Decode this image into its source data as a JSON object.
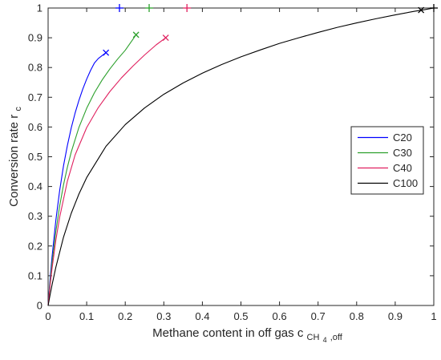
{
  "chart_data": {
    "type": "line",
    "title": "",
    "xlabel": {
      "text": "Methane content in off gas c",
      "sub": "CH",
      "subsub": "4",
      "sub2": ",off"
    },
    "ylabel": {
      "text": "Conversion rate r",
      "sub": "c"
    },
    "xlim": [
      0,
      1
    ],
    "ylim": [
      0,
      1
    ],
    "xticks": [
      "0",
      "0.1",
      "0.2",
      "0.3",
      "0.4",
      "0.5",
      "0.6",
      "0.7",
      "0.8",
      "0.9",
      "1"
    ],
    "yticks": [
      "0",
      "0.1",
      "0.2",
      "0.3",
      "0.4",
      "0.5",
      "0.6",
      "0.7",
      "0.8",
      "0.9",
      "1"
    ],
    "grid": false,
    "legend_position": "right",
    "series": [
      {
        "name": "C20",
        "color": "#0000ff",
        "x": [
          0,
          0.005,
          0.01,
          0.02,
          0.03,
          0.04,
          0.05,
          0.06,
          0.07,
          0.08,
          0.09,
          0.1,
          0.11,
          0.12,
          0.13,
          0.14,
          0.15
        ],
        "y": [
          0,
          0.087,
          0.161,
          0.286,
          0.387,
          0.47,
          0.538,
          0.597,
          0.647,
          0.69,
          0.728,
          0.761,
          0.79,
          0.815,
          0.83,
          0.84,
          0.85
        ],
        "end_marker": {
          "x": 0.15,
          "y": 0.85
        },
        "top_marker": {
          "x": 0.185,
          "y": 1.0
        }
      },
      {
        "name": "C30",
        "color": "#2ca02c",
        "x": [
          0,
          0.005,
          0.01,
          0.02,
          0.03,
          0.04,
          0.05,
          0.06,
          0.08,
          0.1,
          0.12,
          0.14,
          0.16,
          0.18,
          0.2,
          0.228
        ],
        "y": [
          0,
          0.076,
          0.141,
          0.248,
          0.335,
          0.406,
          0.465,
          0.516,
          0.599,
          0.663,
          0.715,
          0.758,
          0.795,
          0.828,
          0.858,
          0.91
        ],
        "end_marker": {
          "x": 0.228,
          "y": 0.91
        },
        "top_marker": {
          "x": 0.262,
          "y": 1.0
        }
      },
      {
        "name": "C40",
        "color": "#e0205f",
        "x": [
          0,
          0.005,
          0.01,
          0.02,
          0.03,
          0.05,
          0.07,
          0.1,
          0.13,
          0.16,
          0.19,
          0.22,
          0.25,
          0.28,
          0.305
        ],
        "y": [
          0,
          0.065,
          0.122,
          0.219,
          0.297,
          0.418,
          0.506,
          0.598,
          0.665,
          0.719,
          0.765,
          0.805,
          0.842,
          0.876,
          0.9
        ],
        "end_marker": {
          "x": 0.305,
          "y": 0.9
        },
        "top_marker": {
          "x": 0.36,
          "y": 1.0
        }
      },
      {
        "name": "C100",
        "color": "#000000",
        "x": [
          0,
          0.005,
          0.01,
          0.02,
          0.04,
          0.06,
          0.08,
          0.1,
          0.15,
          0.2,
          0.25,
          0.3,
          0.35,
          0.4,
          0.45,
          0.5,
          0.55,
          0.6,
          0.65,
          0.7,
          0.75,
          0.8,
          0.85,
          0.9,
          0.95,
          0.97,
          1.0
        ],
        "y": [
          0,
          0.035,
          0.068,
          0.128,
          0.23,
          0.31,
          0.375,
          0.43,
          0.535,
          0.608,
          0.664,
          0.71,
          0.748,
          0.781,
          0.81,
          0.836,
          0.859,
          0.881,
          0.9,
          0.918,
          0.935,
          0.95,
          0.964,
          0.977,
          0.989,
          0.993,
          1.0
        ],
        "end_marker": {
          "x": 0.967,
          "y": 0.993
        },
        "top_marker": {
          "x": 1.0,
          "y": 1.0
        }
      }
    ]
  }
}
